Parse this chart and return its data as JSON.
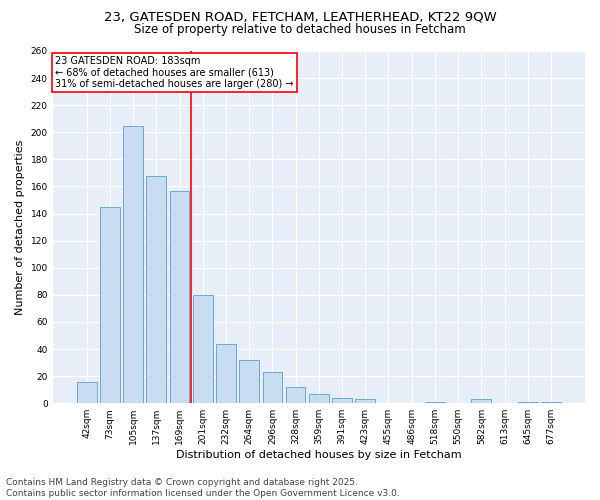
{
  "title1": "23, GATESDEN ROAD, FETCHAM, LEATHERHEAD, KT22 9QW",
  "title2": "Size of property relative to detached houses in Fetcham",
  "xlabel": "Distribution of detached houses by size in Fetcham",
  "ylabel": "Number of detached properties",
  "categories": [
    "42sqm",
    "73sqm",
    "105sqm",
    "137sqm",
    "169sqm",
    "201sqm",
    "232sqm",
    "264sqm",
    "296sqm",
    "328sqm",
    "359sqm",
    "391sqm",
    "423sqm",
    "455sqm",
    "486sqm",
    "518sqm",
    "550sqm",
    "582sqm",
    "613sqm",
    "645sqm",
    "677sqm"
  ],
  "values": [
    16,
    145,
    205,
    168,
    157,
    80,
    44,
    32,
    23,
    12,
    7,
    4,
    3,
    0,
    0,
    1,
    0,
    3,
    0,
    1,
    1
  ],
  "bar_color": "#c9ddf2",
  "bar_edge_color": "#6aaad4",
  "red_line_x": 4.5,
  "annotation_line1": "23 GATESDEN ROAD: 183sqm",
  "annotation_line2": "← 68% of detached houses are smaller (613)",
  "annotation_line3": "31% of semi-detached houses are larger (280) →",
  "annotation_box_color": "white",
  "annotation_box_edgecolor": "red",
  "red_line_color": "red",
  "ylim": [
    0,
    260
  ],
  "yticks": [
    0,
    20,
    40,
    60,
    80,
    100,
    120,
    140,
    160,
    180,
    200,
    220,
    240,
    260
  ],
  "footer1": "Contains HM Land Registry data © Crown copyright and database right 2025.",
  "footer2": "Contains public sector information licensed under the Open Government Licence v3.0.",
  "bg_color": "#ffffff",
  "plot_bg_color": "#e8eef8",
  "title_fontsize": 9.5,
  "subtitle_fontsize": 8.5,
  "tick_fontsize": 6.5,
  "label_fontsize": 8,
  "annotation_fontsize": 7,
  "footer_fontsize": 6.5
}
